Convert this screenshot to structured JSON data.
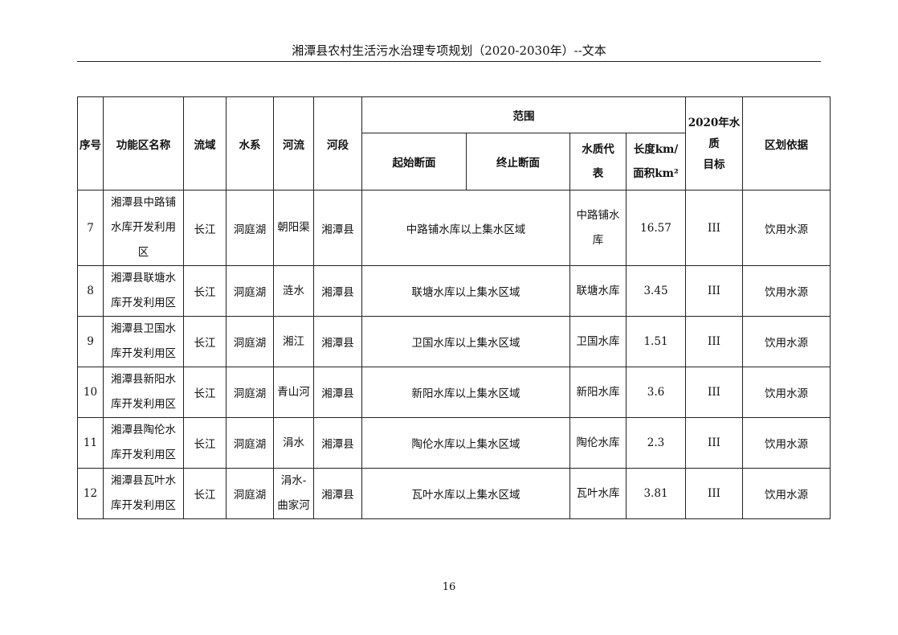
{
  "header": {
    "title": "湘潭县农村生活污水治理专项规划（2020-2030年）--文本"
  },
  "table": {
    "headers": {
      "no": "序号",
      "name": "功能区名称",
      "basin": "流域",
      "system": "水系",
      "river": "河流",
      "section": "河段",
      "range": "范围",
      "start": "起始断面",
      "end": "终止断面",
      "rep_1": "水质代",
      "rep_2": "表",
      "len_1": "长度km/",
      "len_2": "面积km²",
      "goal_1": "2020年水质",
      "goal_2": "目标",
      "basis": "区划依据"
    },
    "rows": [
      {
        "no": "7",
        "name": "湘潭县中路铺水库开发利用区",
        "basin": "长江",
        "system": "洞庭湖",
        "river": "朝阳渠",
        "section": "湘潭县",
        "range": "中路铺水库以上集水区域",
        "rep": "中路铺水库",
        "len": "16.57",
        "goal": "III",
        "basis": "饮用水源"
      },
      {
        "no": "8",
        "name": "湘潭县联塘水库开发利用区",
        "basin": "长江",
        "system": "洞庭湖",
        "river": "涟水",
        "section": "湘潭县",
        "range": "联塘水库以上集水区域",
        "rep": "联塘水库",
        "len": "3.45",
        "goal": "III",
        "basis": "饮用水源"
      },
      {
        "no": "9",
        "name": "湘潭县卫国水库开发利用区",
        "basin": "长江",
        "system": "洞庭湖",
        "river": "湘江",
        "section": "湘潭县",
        "range": "卫国水库以上集水区域",
        "rep": "卫国水库",
        "len": "1.51",
        "goal": "III",
        "basis": "饮用水源"
      },
      {
        "no": "10",
        "name": "湘潭县新阳水库开发利用区",
        "basin": "长江",
        "system": "洞庭湖",
        "river": "青山河",
        "section": "湘潭县",
        "range": "新阳水库以上集水区域",
        "rep": "新阳水库",
        "len": "3.6",
        "goal": "III",
        "basis": "饮用水源"
      },
      {
        "no": "11",
        "name": "湘潭县陶伦水库开发利用区",
        "basin": "长江",
        "system": "洞庭湖",
        "river": "涓水",
        "section": "湘潭县",
        "range": "陶伦水库以上集水区域",
        "rep": "陶伦水库",
        "len": "2.3",
        "goal": "III",
        "basis": "饮用水源"
      },
      {
        "no": "12",
        "name": "湘潭县瓦叶水库开发利用区",
        "basin": "长江",
        "system": "洞庭湖",
        "river": "涓水-曲家河",
        "section": "湘潭县",
        "range": "瓦叶水库以上集水区域",
        "rep": "瓦叶水库",
        "len": "3.81",
        "goal": "III",
        "basis": "饮用水源"
      }
    ]
  },
  "footer": {
    "page_number": "16"
  }
}
